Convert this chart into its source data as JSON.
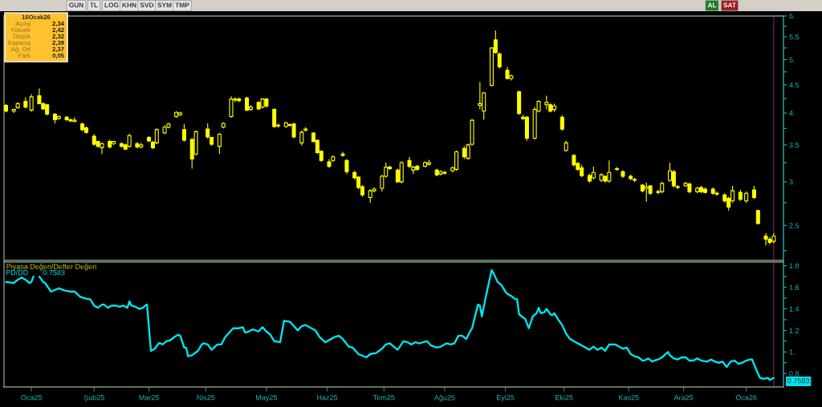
{
  "chart_data": [
    {
      "type": "other",
      "annotations": [
        "GUN",
        "TL",
        "LOG",
        "KHN",
        "SVD",
        "SYM",
        "TMP"
      ]
    },
    {
      "type": "other",
      "annotations": [
        "AL",
        "SAT"
      ],
      "colors": [
        "#1f7a1f",
        "#9e1b1b"
      ]
    },
    {
      "type": "other",
      "color": "#ffc22e",
      "annotations": [
        "16Ocak26",
        "Açılış",
        "2,34",
        "Yüksek",
        "2,42",
        "Düşük",
        "2,32",
        "Kapanış",
        "2,39",
        "Ağ. Ort",
        "2,37",
        "Fark",
        "0,05"
      ]
    },
    {
      "type": "candlestick",
      "color": "#ffff00",
      "log": true,
      "tick_labels": "y",
      "xlim": [
        "2024-12-19",
        "2026-01-21"
      ],
      "ylim": [
        2.16,
        6.0
      ],
      "yticks": [
        {
          "value": 6,
          "label": "6."
        },
        {
          "value": 5.75,
          "label": null
        },
        5.5,
        {
          "value": 5.25,
          "label": null
        },
        {
          "value": 5,
          "label": "5."
        },
        {
          "value": 4.75,
          "label": null
        },
        4.5,
        {
          "value": 4.25,
          "label": null
        },
        {
          "value": 4,
          "label": "4."
        },
        {
          "value": 3.75,
          "label": null
        },
        3.5,
        {
          "value": 3.25,
          "label": null
        },
        {
          "value": 3,
          "label": "3."
        },
        {
          "value": 2.75,
          "label": null
        },
        2.5,
        {
          "value": 2.25,
          "label": null
        }
      ],
      "ref_lines": [
        {
          "axis": "x",
          "value": "2026-01-16",
          "color": "#5c1f5c"
        }
      ],
      "x": [
        "2024-12-20",
        "2024-12-24",
        "2024-12-26",
        "2024-12-30",
        "2025-01-02",
        "2025-01-06",
        "2025-01-08",
        "2025-01-10",
        "2025-01-14",
        "2025-01-16",
        "2025-01-20",
        "2025-01-22",
        "2025-01-24",
        "2025-01-28",
        "2025-01-30",
        "2025-02-03",
        "2025-02-05",
        "2025-02-07",
        "2025-02-11",
        "2025-02-13",
        "2025-02-17",
        "2025-02-19",
        "2025-02-21",
        "2025-02-25",
        "2025-02-27",
        "2025-03-03",
        "2025-03-05",
        "2025-03-07",
        "2025-03-11",
        "2025-03-13",
        "2025-03-17",
        "2025-03-19",
        "2025-03-21",
        "2025-03-25",
        "2025-03-27",
        "2025-04-02",
        "2025-04-04",
        "2025-04-08",
        "2025-04-10",
        "2025-04-14",
        "2025-04-16",
        "2025-04-18",
        "2025-04-22",
        "2025-04-24",
        "2025-04-28",
        "2025-04-30",
        "2025-05-02",
        "2025-05-06",
        "2025-05-08",
        "2025-05-12",
        "2025-05-14",
        "2025-05-16",
        "2025-05-20",
        "2025-05-22",
        "2025-05-26",
        "2025-05-28",
        "2025-05-30",
        "2025-06-03",
        "2025-06-05",
        "2025-06-10",
        "2025-06-12",
        "2025-06-16",
        "2025-06-18",
        "2025-06-20",
        "2025-06-24",
        "2025-06-26",
        "2025-06-30",
        "2025-07-02",
        "2025-07-04",
        "2025-07-08",
        "2025-07-10",
        "2025-07-14",
        "2025-07-16",
        "2025-07-18",
        "2025-07-22",
        "2025-07-24",
        "2025-07-28",
        "2025-07-30",
        "2025-08-01",
        "2025-08-05",
        "2025-08-07",
        "2025-08-11",
        "2025-08-13",
        "2025-08-15",
        "2025-08-19",
        "2025-08-21",
        "2025-08-25",
        "2025-08-27",
        "2025-08-29",
        "2025-09-02",
        "2025-09-04",
        "2025-09-08",
        "2025-09-10",
        "2025-09-12",
        "2025-09-16",
        "2025-09-18",
        "2025-09-22",
        "2025-09-24",
        "2025-09-26",
        "2025-09-30",
        "2025-10-02",
        "2025-10-06",
        "2025-10-08",
        "2025-10-10",
        "2025-10-14",
        "2025-10-16",
        "2025-10-20",
        "2025-10-22",
        "2025-10-24",
        "2025-10-28",
        "2025-10-31",
        "2025-11-04",
        "2025-11-06",
        "2025-11-10",
        "2025-11-12",
        "2025-11-14",
        "2025-11-18",
        "2025-11-20",
        "2025-11-24",
        "2025-11-26",
        "2025-11-28",
        "2025-12-02",
        "2025-12-04",
        "2025-12-08",
        "2025-12-10",
        "2025-12-12",
        "2025-12-16",
        "2025-12-18",
        "2025-12-22",
        "2025-12-24",
        "2025-12-26",
        "2025-12-30",
        "2026-01-02",
        "2026-01-06",
        "2026-01-08",
        "2026-01-12",
        "2026-01-14",
        "2026-01-16"
      ],
      "ohlc": [
        [
          4.13,
          4.15,
          4.01,
          4.03
        ],
        [
          4.03,
          4.07,
          4.0,
          4.06
        ],
        [
          4.09,
          4.18,
          4.07,
          4.16
        ],
        [
          4.2,
          4.27,
          4.08,
          4.1
        ],
        [
          4.05,
          4.33,
          4.02,
          4.28
        ],
        [
          4.3,
          4.43,
          4.15,
          4.16
        ],
        [
          4.16,
          4.18,
          4.05,
          4.07
        ],
        [
          4.14,
          4.15,
          3.96,
          3.98
        ],
        [
          3.98,
          4.0,
          3.83,
          3.89
        ],
        [
          3.91,
          3.96,
          3.89,
          3.94
        ],
        [
          3.93,
          3.95,
          3.87,
          3.89
        ],
        [
          3.89,
          3.9,
          3.85,
          3.87
        ],
        [
          3.86,
          3.93,
          3.85,
          3.88
        ],
        [
          3.82,
          3.84,
          3.71,
          3.73
        ],
        [
          3.76,
          3.78,
          3.67,
          3.69
        ],
        [
          3.63,
          3.66,
          3.49,
          3.51
        ],
        [
          3.55,
          3.56,
          3.46,
          3.48
        ],
        [
          3.46,
          3.54,
          3.37,
          3.52
        ],
        [
          3.55,
          3.58,
          3.45,
          3.47
        ],
        [
          3.52,
          3.56,
          3.5,
          3.55
        ],
        [
          3.52,
          3.54,
          3.46,
          3.48
        ],
        [
          3.5,
          3.52,
          3.43,
          3.44
        ],
        [
          3.48,
          3.67,
          3.46,
          3.64
        ],
        [
          3.52,
          3.54,
          3.45,
          3.47
        ],
        [
          3.47,
          3.53,
          3.45,
          3.5
        ],
        [
          3.61,
          3.63,
          3.54,
          3.56
        ],
        [
          3.54,
          3.56,
          3.44,
          3.46
        ],
        [
          3.53,
          3.75,
          3.51,
          3.73
        ],
        [
          3.68,
          3.8,
          3.66,
          3.77
        ],
        [
          3.77,
          3.84,
          3.75,
          3.82
        ],
        [
          3.94,
          4.03,
          3.92,
          4.01
        ],
        [
          3.97,
          4.02,
          3.95,
          4.0
        ],
        [
          3.73,
          3.82,
          3.55,
          3.57
        ],
        [
          3.58,
          3.6,
          3.17,
          3.3
        ],
        [
          3.37,
          3.72,
          3.35,
          3.7
        ],
        [
          3.74,
          3.83,
          3.59,
          3.62
        ],
        [
          3.61,
          3.62,
          3.49,
          3.51
        ],
        [
          3.48,
          3.68,
          3.37,
          3.66
        ],
        [
          3.77,
          3.85,
          3.75,
          3.83
        ],
        [
          3.94,
          4.29,
          3.92,
          4.24
        ],
        [
          4.22,
          4.27,
          4.19,
          4.24
        ],
        [
          4.24,
          4.27,
          4.19,
          4.21
        ],
        [
          4.26,
          4.28,
          4.03,
          4.05
        ],
        [
          4.06,
          4.13,
          4.04,
          4.1
        ],
        [
          4.18,
          4.2,
          4.05,
          4.07
        ],
        [
          4.1,
          4.26,
          4.08,
          4.24
        ],
        [
          4.24,
          4.26,
          4.09,
          4.12
        ],
        [
          4.06,
          4.08,
          3.76,
          3.78
        ],
        [
          3.79,
          3.83,
          3.76,
          3.8
        ],
        [
          3.78,
          3.86,
          3.76,
          3.84
        ],
        [
          3.81,
          3.83,
          3.78,
          3.8
        ],
        [
          3.82,
          3.84,
          3.6,
          3.62
        ],
        [
          3.53,
          3.72,
          3.49,
          3.69
        ],
        [
          3.72,
          3.77,
          3.7,
          3.74
        ],
        [
          3.68,
          3.69,
          3.54,
          3.55
        ],
        [
          3.57,
          3.58,
          3.37,
          3.39
        ],
        [
          3.41,
          3.42,
          3.26,
          3.28
        ],
        [
          3.26,
          3.3,
          3.18,
          3.2
        ],
        [
          3.28,
          3.35,
          3.26,
          3.33
        ],
        [
          3.37,
          3.4,
          3.33,
          3.35
        ],
        [
          3.28,
          3.3,
          3.1,
          3.13
        ],
        [
          3.12,
          3.14,
          3.03,
          3.05
        ],
        [
          3.06,
          3.07,
          2.91,
          2.93
        ],
        [
          2.94,
          2.96,
          2.82,
          2.84
        ],
        [
          2.81,
          2.91,
          2.75,
          2.89
        ],
        [
          2.89,
          2.93,
          2.87,
          2.91
        ],
        [
          2.92,
          3.09,
          2.88,
          3.07
        ],
        [
          3.07,
          3.25,
          3.05,
          3.19
        ],
        [
          3.19,
          3.21,
          3.15,
          3.17
        ],
        [
          3.15,
          3.17,
          2.99,
          3.0
        ],
        [
          3.0,
          3.27,
          2.98,
          3.25
        ],
        [
          3.28,
          3.33,
          3.18,
          3.2
        ],
        [
          3.15,
          3.21,
          3.1,
          3.19
        ],
        [
          3.2,
          3.22,
          3.14,
          3.16
        ],
        [
          3.2,
          3.27,
          3.19,
          3.25
        ],
        [
          3.23,
          3.29,
          3.21,
          3.25
        ],
        [
          3.15,
          3.17,
          3.07,
          3.09
        ],
        [
          3.1,
          3.15,
          3.08,
          3.13
        ],
        [
          3.12,
          3.14,
          3.09,
          3.11
        ],
        [
          3.14,
          3.2,
          3.12,
          3.18
        ],
        [
          3.16,
          3.42,
          3.14,
          3.4
        ],
        [
          3.45,
          3.48,
          3.3,
          3.33
        ],
        [
          3.31,
          3.52,
          3.29,
          3.5
        ],
        [
          3.51,
          3.9,
          3.49,
          3.88
        ],
        [
          4.13,
          4.55,
          4.06,
          4.16
        ],
        [
          4.03,
          4.37,
          3.89,
          4.35
        ],
        [
          4.49,
          5.27,
          4.47,
          5.25
        ],
        [
          5.43,
          5.65,
          5.13,
          5.15
        ],
        [
          5.12,
          5.15,
          4.82,
          4.85
        ],
        [
          4.78,
          4.85,
          4.6,
          4.62
        ],
        [
          4.62,
          4.7,
          4.58,
          4.67
        ],
        [
          4.37,
          4.39,
          3.97,
          3.99
        ],
        [
          3.93,
          3.97,
          3.88,
          3.91
        ],
        [
          3.93,
          3.95,
          3.56,
          3.6
        ],
        [
          3.6,
          4.1,
          3.58,
          4.06
        ],
        [
          4.03,
          4.22,
          4.01,
          4.2
        ],
        [
          4.14,
          4.3,
          4.06,
          4.18
        ],
        [
          4.14,
          4.16,
          4.01,
          4.03
        ],
        [
          4.06,
          4.16,
          4.02,
          4.12
        ],
        [
          3.93,
          3.96,
          3.72,
          3.74
        ],
        [
          3.42,
          3.56,
          3.4,
          3.53
        ],
        [
          3.35,
          3.37,
          3.2,
          3.22
        ],
        [
          3.24,
          3.26,
          3.14,
          3.16
        ],
        [
          3.18,
          3.22,
          3.06,
          3.08
        ],
        [
          3.08,
          3.1,
          2.99,
          3.01
        ],
        [
          3.05,
          3.2,
          3.03,
          3.12
        ],
        [
          3.02,
          3.11,
          3.0,
          3.09
        ],
        [
          3.07,
          3.08,
          2.99,
          3.01
        ],
        [
          3.01,
          3.28,
          2.99,
          3.12
        ],
        [
          3.16,
          3.19,
          3.14,
          3.17
        ],
        [
          3.13,
          3.15,
          3.05,
          3.07
        ],
        [
          3.07,
          3.09,
          3.02,
          3.04
        ],
        [
          3.03,
          3.05,
          3.0,
          3.02
        ],
        [
          2.96,
          2.97,
          2.87,
          2.89
        ],
        [
          2.92,
          2.99,
          2.76,
          2.94
        ],
        [
          2.95,
          2.96,
          2.84,
          2.86
        ],
        [
          2.88,
          2.9,
          2.85,
          2.87
        ],
        [
          2.88,
          3.0,
          2.86,
          2.98
        ],
        [
          3.02,
          3.25,
          3.0,
          3.14
        ],
        [
          3.13,
          3.15,
          2.93,
          2.95
        ],
        [
          2.94,
          2.96,
          2.91,
          2.93
        ],
        [
          2.95,
          3.0,
          2.94,
          2.98
        ],
        [
          2.97,
          2.99,
          2.86,
          2.88
        ],
        [
          2.88,
          2.94,
          2.86,
          2.92
        ],
        [
          2.93,
          2.95,
          2.86,
          2.88
        ],
        [
          2.91,
          2.93,
          2.86,
          2.87
        ],
        [
          2.91,
          2.93,
          2.84,
          2.86
        ],
        [
          2.86,
          2.88,
          2.83,
          2.85
        ],
        [
          2.84,
          2.86,
          2.75,
          2.77
        ],
        [
          2.8,
          2.82,
          2.66,
          2.7
        ],
        [
          2.77,
          2.95,
          2.75,
          2.89
        ],
        [
          2.87,
          2.9,
          2.77,
          2.79
        ],
        [
          2.77,
          2.88,
          2.75,
          2.86
        ],
        [
          2.9,
          2.95,
          2.79,
          2.81
        ],
        [
          2.66,
          2.67,
          2.51,
          2.52
        ],
        [
          2.39,
          2.42,
          2.3,
          2.36
        ],
        [
          2.36,
          2.38,
          2.31,
          2.33
        ],
        [
          2.34,
          2.42,
          2.32,
          2.39
        ]
      ]
    },
    {
      "type": "line",
      "title": "Piyasa Değeri/Defter Değeri",
      "legend": "top left",
      "xlim": [
        "2024-12-19",
        "2026-01-21"
      ],
      "ylim": [
        0.675,
        1.835
      ],
      "xticks": [
        {
          "value": "2025-01-02",
          "label": "Oca25"
        },
        {
          "value": "2025-02-03",
          "label": "Şub25"
        },
        {
          "value": "2025-03-03",
          "label": "Mar25"
        },
        {
          "value": "2025-04-01",
          "label": "Nis25"
        },
        {
          "value": "2025-05-02",
          "label": "May25"
        },
        {
          "value": "2025-06-02",
          "label": "Haz25"
        },
        {
          "value": "2025-07-01",
          "label": "Tem25"
        },
        {
          "value": "2025-08-01",
          "label": "Ağu25"
        },
        {
          "value": "2025-09-01",
          "label": "Eyl25"
        },
        {
          "value": "2025-10-01",
          "label": "Eki25"
        },
        {
          "value": "2025-11-03",
          "label": "Kas25"
        },
        {
          "value": "2025-12-01",
          "label": "Ara25"
        },
        {
          "value": "2026-01-02",
          "label": "Oca26"
        }
      ],
      "yticks": [
        1.8,
        {
          "value": 1.7,
          "label": null
        },
        1.6,
        {
          "value": 1.5,
          "label": null
        },
        1.4,
        {
          "value": 1.3,
          "label": null
        },
        1.2,
        {
          "value": 1.1,
          "label": null
        },
        {
          "value": 1,
          "label": "1."
        },
        {
          "value": 0.9,
          "label": null
        },
        0.8
      ],
      "ref_lines": [
        {
          "axis": "x",
          "value": "2026-01-16",
          "color": "#5c1f5c"
        }
      ],
      "annotations": [
        ":0.7583",
        {
          "text": "0.7583",
          "x": "2026-01-16",
          "y": 0.7583
        }
      ],
      "x": [
        "2024-12-20",
        "2024-12-24",
        "2024-12-26",
        "2024-12-28",
        "2024-12-30",
        "2025-01-01",
        "2025-01-02",
        "2025-01-03",
        "2025-01-04",
        "2025-01-06",
        "2025-01-08",
        "2025-01-09",
        "2025-01-12",
        "2025-01-16",
        "2025-01-19",
        "2025-01-22",
        "2025-01-24",
        "2025-01-27",
        "2025-01-29",
        "2025-01-31",
        "2025-02-01",
        "2025-02-03",
        "2025-02-05",
        "2025-02-07",
        "2025-02-08",
        "2025-02-10",
        "2025-02-12",
        "2025-02-14",
        "2025-02-16",
        "2025-02-18",
        "2025-02-20",
        "2025-02-21",
        "2025-02-22",
        "2025-02-24",
        "2025-02-26",
        "2025-02-28",
        "2025-03-01",
        "2025-03-02",
        "2025-03-04",
        "2025-03-06",
        "2025-03-08",
        "2025-03-09",
        "2025-03-10",
        "2025-03-12",
        "2025-03-14",
        "2025-03-16",
        "2025-03-18",
        "2025-03-19",
        "2025-03-21",
        "2025-03-22",
        "2025-03-23",
        "2025-03-25",
        "2025-03-28",
        "2025-03-30",
        "2025-03-31",
        "2025-04-02",
        "2025-04-04",
        "2025-04-07",
        "2025-04-09",
        "2025-04-11",
        "2025-04-13",
        "2025-04-15",
        "2025-04-18",
        "2025-04-20",
        "2025-04-21",
        "2025-04-23",
        "2025-04-25",
        "2025-04-28",
        "2025-04-30",
        "2025-05-02",
        "2025-05-04",
        "2025-05-06",
        "2025-05-09",
        "2025-05-11",
        "2025-05-14",
        "2025-05-16",
        "2025-05-18",
        "2025-05-20",
        "2025-05-22",
        "2025-05-25",
        "2025-05-27",
        "2025-05-29",
        "2025-06-01",
        "2025-06-04",
        "2025-06-06",
        "2025-06-08",
        "2025-06-10",
        "2025-06-13",
        "2025-06-15",
        "2025-06-18",
        "2025-06-22",
        "2025-06-24",
        "2025-06-27",
        "2025-06-30",
        "2025-07-02",
        "2025-07-04",
        "2025-07-06",
        "2025-07-08",
        "2025-07-11",
        "2025-07-13",
        "2025-07-15",
        "2025-07-17",
        "2025-07-19",
        "2025-07-21",
        "2025-07-23",
        "2025-07-25",
        "2025-07-28",
        "2025-07-30",
        "2025-08-02",
        "2025-08-04",
        "2025-08-06",
        "2025-08-08",
        "2025-08-10",
        "2025-08-12",
        "2025-08-14",
        "2025-08-15",
        "2025-08-18",
        "2025-08-19",
        "2025-08-20",
        "2025-08-22",
        "2025-08-25",
        "2025-08-26",
        "2025-08-28",
        "2025-08-30",
        "2025-09-01",
        "2025-09-02",
        "2025-09-04",
        "2025-09-06",
        "2025-09-07",
        "2025-09-08",
        "2025-09-10",
        "2025-09-11",
        "2025-09-13",
        "2025-09-15",
        "2025-09-17",
        "2025-09-18",
        "2025-09-19",
        "2025-09-21",
        "2025-09-22",
        "2025-09-24",
        "2025-09-25",
        "2025-09-26",
        "2025-09-28",
        "2025-09-30",
        "2025-10-02",
        "2025-10-04",
        "2025-10-07",
        "2025-10-09",
        "2025-10-11",
        "2025-10-14",
        "2025-10-16",
        "2025-10-18",
        "2025-10-20",
        "2025-10-22",
        "2025-10-24",
        "2025-10-27",
        "2025-10-29",
        "2025-10-31",
        "2025-11-02",
        "2025-11-04",
        "2025-11-06",
        "2025-11-08",
        "2025-11-10",
        "2025-11-11",
        "2025-11-13",
        "2025-11-15",
        "2025-11-16",
        "2025-11-18",
        "2025-11-20",
        "2025-11-23",
        "2025-11-24",
        "2025-11-26",
        "2025-11-28",
        "2025-11-30",
        "2025-12-02",
        "2025-12-04",
        "2025-12-06",
        "2025-12-08",
        "2025-12-10",
        "2025-12-13",
        "2025-12-15",
        "2025-12-17",
        "2025-12-19",
        "2025-12-21",
        "2025-12-23",
        "2025-12-25",
        "2025-12-27",
        "2025-12-29",
        "2025-12-31",
        "2026-01-02",
        "2026-01-04",
        "2026-01-05",
        "2026-01-07",
        "2026-01-09",
        "2026-01-11",
        "2026-01-13",
        "2026-01-14",
        "2026-01-16"
      ],
      "series": [
        {
          "name": "PD/DD",
          "color": "#00e5ee",
          "values": [
            1.65,
            1.64,
            1.67,
            1.69,
            1.67,
            1.64,
            1.65,
            1.7,
            null,
            1.7,
            1.65,
            1.64,
            1.56,
            1.59,
            1.57,
            1.56,
            1.56,
            1.51,
            1.5,
            1.49,
            1.49,
            1.43,
            1.41,
            1.44,
            1.44,
            1.41,
            1.43,
            1.43,
            1.42,
            1.43,
            1.41,
            1.47,
            1.43,
            1.42,
            1.4,
            1.41,
            1.43,
            1.44,
            1.01,
            1.03,
            1.08,
            1.08,
            1.07,
            1.1,
            1.11,
            1.14,
            1.16,
            1.15,
            1.04,
            1.04,
            0.96,
            0.97,
            1.01,
            1.07,
            1.08,
            1.07,
            1.02,
            1.07,
            1.07,
            1.14,
            1.18,
            1.22,
            1.22,
            1.23,
            1.18,
            1.19,
            1.21,
            1.19,
            1.23,
            1.19,
            1.16,
            1.1,
            1.09,
            1.29,
            1.28,
            1.24,
            1.2,
            1.24,
            1.25,
            1.22,
            1.2,
            1.14,
            1.09,
            1.12,
            1.14,
            1.15,
            1.12,
            1.05,
            1.04,
            0.98,
            0.95,
            0.98,
            0.99,
            1.03,
            1.07,
            1.08,
            1.05,
            1.02,
            1.1,
            1.09,
            1.07,
            1.09,
            1.08,
            1.09,
            1.1,
            1.06,
            1.04,
            1.05,
            1.08,
            1.07,
            1.08,
            1.15,
            1.15,
            1.12,
            1.19,
            1.22,
            1.44,
            1.43,
            1.33,
            1.51,
            1.76,
            1.73,
            1.65,
            1.62,
            1.56,
            1.54,
            1.52,
            1.49,
            1.49,
            1.35,
            1.32,
            1.31,
            1.22,
            1.33,
            1.36,
            1.41,
            1.36,
            1.37,
            1.4,
            1.35,
            1.34,
            1.36,
            1.3,
            1.25,
            1.17,
            1.12,
            1.09,
            1.07,
            1.05,
            1.02,
            1.05,
            1.02,
            1.04,
            1.01,
            1.07,
            1.07,
            1.05,
            1.03,
            1.04,
            0.98,
            0.96,
            0.95,
            0.92,
            0.92,
            0.94,
            0.91,
            0.92,
            0.93,
            0.95,
            1.0,
            0.97,
            0.94,
            0.93,
            0.95,
            0.95,
            0.92,
            0.92,
            0.94,
            0.92,
            0.91,
            0.93,
            0.91,
            0.9,
            0.91,
            0.86,
            0.91,
            0.92,
            0.89,
            0.9,
            0.92,
            0.93,
            0.93,
            0.84,
            0.76,
            0.75,
            0.76,
            0.74,
            0.7583
          ]
        }
      ]
    }
  ]
}
